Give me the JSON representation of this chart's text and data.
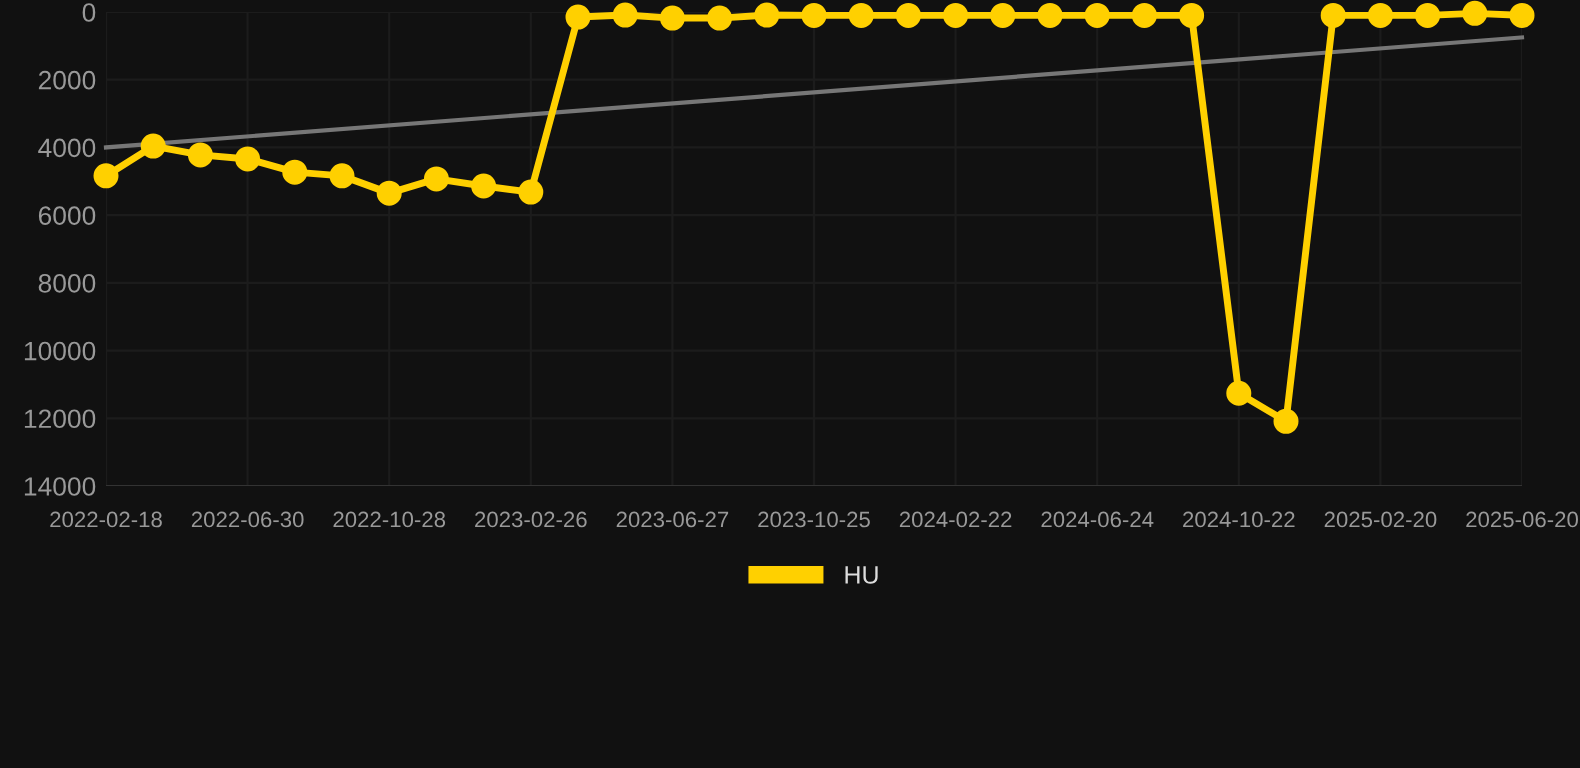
{
  "chart_data": {
    "type": "line",
    "categories": [
      "2022-02-18",
      null,
      null,
      "2022-06-30",
      null,
      null,
      "2022-10-28",
      null,
      null,
      "2023-02-26",
      null,
      null,
      "2023-06-27",
      null,
      null,
      "2023-10-25",
      null,
      null,
      "2024-02-22",
      null,
      null,
      "2024-06-24",
      null,
      null,
      "2024-10-22",
      null,
      null,
      "2025-02-20",
      null,
      null,
      "2025-06-20"
    ],
    "series": [
      {
        "name": "HU",
        "color": "#ffd000",
        "marker": "circle",
        "values": [
          4840,
          3960,
          4220,
          4340,
          4730,
          4840,
          5350,
          4930,
          5140,
          5320,
          150,
          90,
          180,
          180,
          90,
          100,
          100,
          100,
          100,
          100,
          100,
          100,
          100,
          100,
          11260,
          12090,
          100,
          100,
          100,
          40,
          100
        ]
      },
      {
        "type": "line",
        "color": "#777777",
        "marker": "none",
        "values": [
          4000,
          null,
          null,
          null,
          null,
          null,
          null,
          null,
          null,
          null,
          null,
          null,
          null,
          null,
          null,
          null,
          null,
          null,
          null,
          null,
          null,
          null,
          null,
          null,
          null,
          null,
          null,
          null,
          null,
          null,
          750
        ]
      }
    ],
    "ylim": [
      14000,
      0
    ],
    "yticks": [
      0,
      2000,
      4000,
      6000,
      8000,
      10000,
      12000,
      14000
    ],
    "grid": true,
    "legend": "bottom",
    "line_style": "solid"
  }
}
